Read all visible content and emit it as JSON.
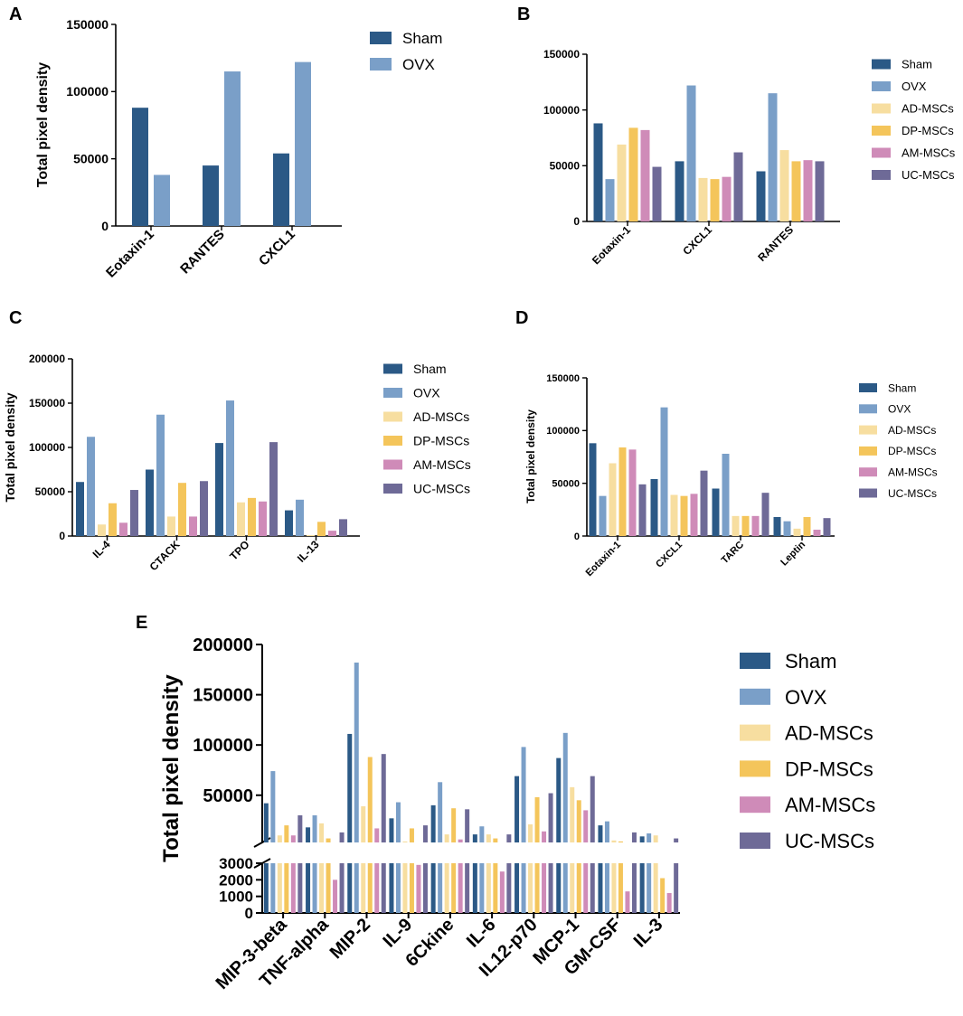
{
  "colors": {
    "Sham": "#2b5986",
    "OVX": "#7a9fc8",
    "AD-MSCs": "#f7dea0",
    "DP-MSCs": "#f4c55b",
    "AM-MSCs": "#cf8bb8",
    "UC-MSCs": "#6e6a97"
  },
  "chart_data": [
    {
      "panel": "A",
      "type": "bar",
      "title": "",
      "ylabel": "Total pixel density",
      "xlabel": "",
      "ylim": [
        0,
        150000
      ],
      "yticks": [
        "0",
        "50000",
        "100000",
        "150000"
      ],
      "categories": [
        "Eotaxin-1",
        "RANTES",
        "CXCL1"
      ],
      "series": [
        {
          "name": "Sham",
          "values": [
            88000,
            45000,
            54000
          ]
        },
        {
          "name": "OVX",
          "values": [
            38000,
            115000,
            122000
          ]
        }
      ]
    },
    {
      "panel": "B",
      "type": "bar",
      "title": "",
      "ylabel": "",
      "xlabel": "",
      "ylim": [
        0,
        150000
      ],
      "yticks": [
        "0",
        "50000",
        "100000",
        "150000"
      ],
      "categories": [
        "Eotaxin-1",
        "CXCL1",
        "RANTES"
      ],
      "series": [
        {
          "name": "Sham",
          "values": [
            88000,
            54000,
            45000
          ]
        },
        {
          "name": "OVX",
          "values": [
            38000,
            122000,
            115000
          ]
        },
        {
          "name": "AD-MSCs",
          "values": [
            69000,
            39000,
            64000
          ]
        },
        {
          "name": "DP-MSCs",
          "values": [
            84000,
            38000,
            54000
          ]
        },
        {
          "name": "AM-MSCs",
          "values": [
            82000,
            40000,
            55000
          ]
        },
        {
          "name": "UC-MSCs",
          "values": [
            49000,
            62000,
            54000
          ]
        }
      ]
    },
    {
      "panel": "C",
      "type": "bar",
      "title": "",
      "ylabel": "Total pixel density",
      "xlabel": "",
      "ylim": [
        0,
        200000
      ],
      "yticks": [
        "0",
        "50000",
        "100000",
        "150000",
        "200000"
      ],
      "categories": [
        "IL-4",
        "CTACK",
        "TPO",
        "IL-13"
      ],
      "series": [
        {
          "name": "Sham",
          "values": [
            61000,
            75000,
            105000,
            29000
          ]
        },
        {
          "name": "OVX",
          "values": [
            112000,
            137000,
            153000,
            41000
          ]
        },
        {
          "name": "AD-MSCs",
          "values": [
            13000,
            22000,
            38000,
            1000
          ]
        },
        {
          "name": "DP-MSCs",
          "values": [
            37000,
            60000,
            43000,
            16000
          ]
        },
        {
          "name": "AM-MSCs",
          "values": [
            15000,
            22000,
            39000,
            6000
          ]
        },
        {
          "name": "UC-MSCs",
          "values": [
            52000,
            62000,
            106000,
            19000
          ]
        }
      ]
    },
    {
      "panel": "D",
      "type": "bar",
      "title": "",
      "ylabel": "Total pixel density",
      "xlabel": "",
      "ylim": [
        0,
        150000
      ],
      "yticks": [
        "0",
        "50000",
        "100000",
        "150000"
      ],
      "categories": [
        "Eotaxin-1",
        "CXCL1",
        "TARC",
        "Leptin"
      ],
      "series": [
        {
          "name": "Sham",
          "values": [
            88000,
            54000,
            45000,
            18000
          ]
        },
        {
          "name": "OVX",
          "values": [
            38000,
            122000,
            78000,
            14000
          ]
        },
        {
          "name": "AD-MSCs",
          "values": [
            69000,
            39000,
            19000,
            7000
          ]
        },
        {
          "name": "DP-MSCs",
          "values": [
            84000,
            38000,
            19000,
            18000
          ]
        },
        {
          "name": "AM-MSCs",
          "values": [
            82000,
            40000,
            19000,
            6000
          ]
        },
        {
          "name": "UC-MSCs",
          "values": [
            49000,
            62000,
            41000,
            17000
          ]
        }
      ]
    },
    {
      "panel": "E",
      "type": "bar",
      "title": "",
      "ylabel": "Total pixel density",
      "xlabel": "",
      "axis_break": true,
      "lower_ylim": [
        0,
        3000
      ],
      "lower_yticks": [
        "0",
        "1000",
        "2000",
        "3000"
      ],
      "upper_ylim": [
        3000,
        200000
      ],
      "upper_yticks": [
        "50000",
        "100000",
        "150000",
        "200000"
      ],
      "categories": [
        "MIP-3-beta",
        "TNF-alpha",
        "MIP-2",
        "IL-9",
        "6Ckine",
        "IL-6",
        "IL12-p70",
        "MCP-1",
        "GM-CSF",
        "IL-3"
      ],
      "series": [
        {
          "name": "Sham",
          "values": [
            42000,
            18000,
            111000,
            27000,
            40000,
            11000,
            69000,
            87000,
            20000,
            9000
          ]
        },
        {
          "name": "OVX",
          "values": [
            74000,
            30000,
            182000,
            43000,
            63000,
            19000,
            98000,
            112000,
            24000,
            12000
          ]
        },
        {
          "name": "AD-MSCs",
          "values": [
            10000,
            22000,
            39000,
            4000,
            11000,
            11000,
            21000,
            58000,
            5000,
            10000
          ]
        },
        {
          "name": "DP-MSCs",
          "values": [
            20000,
            7000,
            88000,
            17000,
            37000,
            7000,
            48000,
            45000,
            4000,
            2100
          ]
        },
        {
          "name": "AM-MSCs",
          "values": [
            10000,
            2000,
            17000,
            2900,
            6000,
            2500,
            14000,
            35000,
            1300,
            1200
          ]
        },
        {
          "name": "UC-MSCs",
          "values": [
            30000,
            13000,
            91000,
            20000,
            36000,
            11000,
            52000,
            69000,
            13000,
            7000
          ]
        }
      ]
    }
  ]
}
